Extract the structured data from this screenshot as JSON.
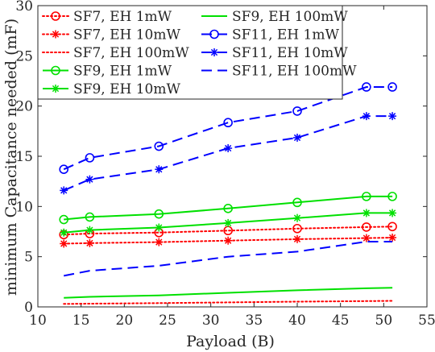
{
  "chart_data": {
    "type": "line",
    "xlabel": "Payload (B)",
    "ylabel": "minimum Capacitance needed (mF)",
    "xlim": [
      10,
      55
    ],
    "ylim": [
      0,
      30
    ],
    "xticks": [
      10,
      15,
      20,
      25,
      30,
      35,
      40,
      45,
      50,
      55
    ],
    "yticks": [
      0,
      5,
      10,
      15,
      20,
      25,
      30
    ],
    "grid": false,
    "legend_position": "top-left, two columns",
    "x": [
      13,
      16,
      24,
      32,
      40,
      48,
      51
    ],
    "series": [
      {
        "name": "SF7, EH 1mW",
        "color": "#ff0000",
        "line": "dotted",
        "marker": "circle",
        "values": [
          7.2,
          7.3,
          7.4,
          7.6,
          7.8,
          7.95,
          8.0
        ]
      },
      {
        "name": "SF7, EH 10mW",
        "color": "#ff0000",
        "line": "dotted",
        "marker": "star",
        "values": [
          6.3,
          6.35,
          6.45,
          6.6,
          6.75,
          6.85,
          6.9
        ]
      },
      {
        "name": "SF7, EH 100mW",
        "color": "#ff0000",
        "line": "dotted",
        "marker": "none",
        "values": [
          0.3,
          0.32,
          0.38,
          0.45,
          0.52,
          0.58,
          0.6
        ]
      },
      {
        "name": "SF9, EH 1mW",
        "color": "#00e000",
        "line": "solid",
        "marker": "circle",
        "values": [
          8.7,
          8.95,
          9.25,
          9.8,
          10.4,
          11.0,
          11.0
        ]
      },
      {
        "name": "SF9, EH 10mW",
        "color": "#00e000",
        "line": "solid",
        "marker": "star",
        "values": [
          7.4,
          7.65,
          7.9,
          8.35,
          8.85,
          9.35,
          9.35
        ]
      },
      {
        "name": "SF9, EH 100mW",
        "color": "#00e000",
        "line": "solid",
        "marker": "none",
        "values": [
          0.9,
          1.0,
          1.15,
          1.4,
          1.65,
          1.85,
          1.9
        ]
      },
      {
        "name": "SF11, EH 1mW",
        "color": "#0000ff",
        "line": "dashed",
        "marker": "circle",
        "values": [
          13.7,
          14.85,
          16.0,
          18.35,
          19.5,
          21.9,
          21.9
        ]
      },
      {
        "name": "SF11, EH 10mW",
        "color": "#0000ff",
        "line": "dashed",
        "marker": "star",
        "values": [
          11.6,
          12.7,
          13.7,
          15.8,
          16.85,
          19.0,
          19.0
        ]
      },
      {
        "name": "SF11, EH 100mW",
        "color": "#0000ff",
        "line": "dashed",
        "marker": "none",
        "values": [
          3.1,
          3.6,
          4.1,
          5.0,
          5.5,
          6.5,
          6.5
        ]
      }
    ]
  }
}
